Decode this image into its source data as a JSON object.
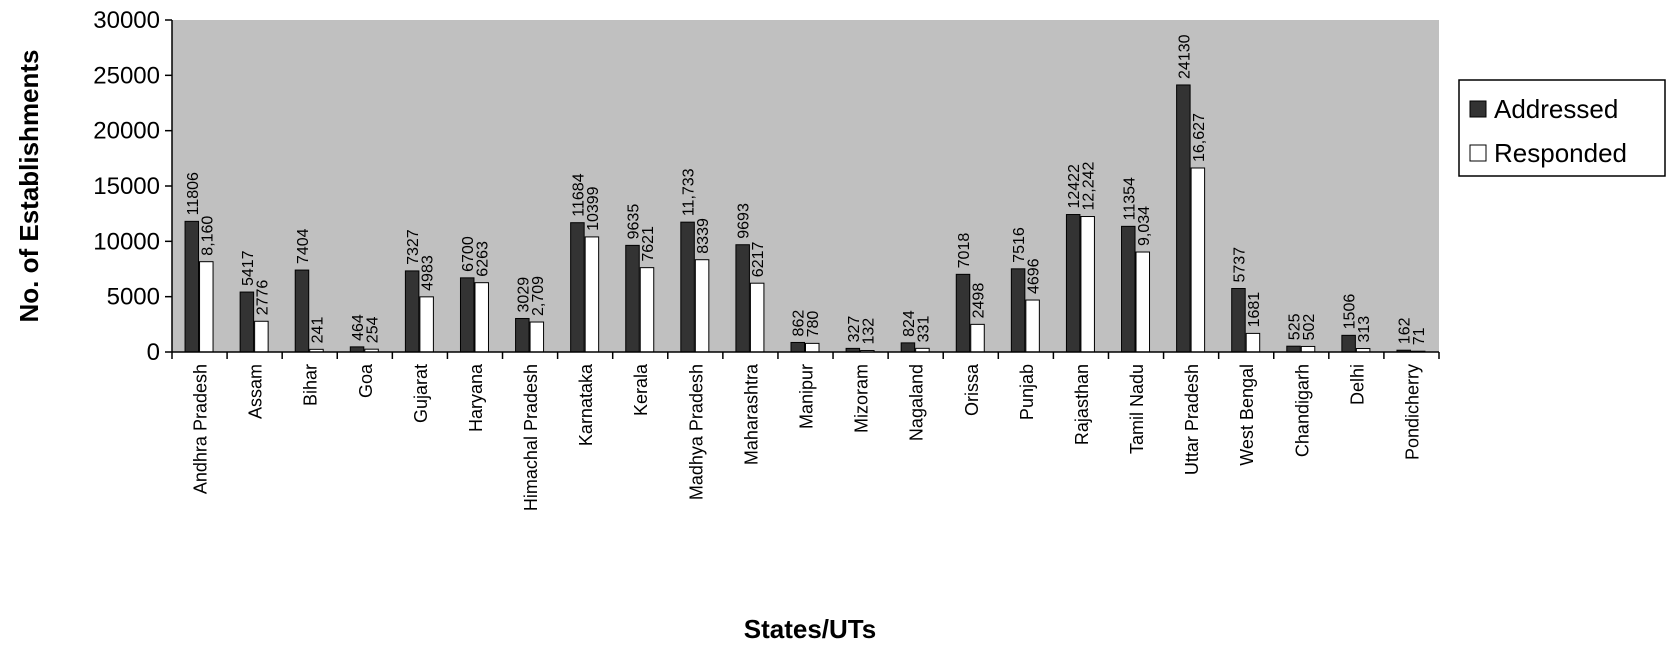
{
  "chart_data": {
    "type": "bar",
    "title": "",
    "xlabel": "States/UTs",
    "ylabel": "No. of Establishments",
    "ylim": [
      0,
      30000
    ],
    "yticks": [
      "0",
      "5000",
      "10000",
      "15000",
      "20000",
      "25000",
      "30000"
    ],
    "grid": false,
    "legend_position": "right",
    "plot_background": "#c0c0c0",
    "categories": [
      "Andhra Pradesh",
      "Assam",
      "Bihar",
      "Goa",
      "Gujarat",
      "Haryana",
      "Himachal Pradesh",
      "Karnataka",
      "Kerala",
      "Madhya Pradesh",
      "Maharashtra",
      "Manipur",
      "Mizoram",
      "Nagaland",
      "Orissa",
      "Punjab",
      "Rajasthan",
      "Tamil Nadu",
      "Uttar Pradesh",
      "West Bengal",
      "Chandigarh",
      "Delhi",
      "Pondicherry"
    ],
    "series": [
      {
        "name": "Addressed",
        "color": "#333333",
        "values": [
          11806,
          5417,
          7404,
          464,
          7327,
          6700,
          3029,
          11684,
          9635,
          11733,
          9693,
          862,
          327,
          824,
          7018,
          7516,
          12422,
          11354,
          24130,
          5737,
          525,
          1506,
          162
        ],
        "labels": [
          "11806",
          "5417",
          "7404",
          "464",
          "7327",
          "6700",
          "3029",
          "11684",
          "9635",
          "11,733",
          "9693",
          "862",
          "327",
          "824",
          "7018",
          "7516",
          "12422",
          "11354",
          "24130",
          "5737",
          "525",
          "1506",
          "162"
        ]
      },
      {
        "name": "Responded",
        "color": "#ffffff",
        "values": [
          8160,
          2776,
          241,
          254,
          4983,
          6263,
          2709,
          10399,
          7621,
          8339,
          6217,
          780,
          132,
          331,
          2498,
          4696,
          12242,
          9034,
          16627,
          1681,
          502,
          313,
          71
        ],
        "labels": [
          "8,160",
          "2776",
          "241",
          "254",
          "4983",
          "6263",
          "2,709",
          "10399",
          "7621",
          "8339",
          "6217",
          "780",
          "132",
          "331",
          "2498",
          "4696",
          "12,242",
          "9,034",
          "16,627",
          "1681",
          "502",
          "313",
          "71"
        ]
      }
    ]
  }
}
